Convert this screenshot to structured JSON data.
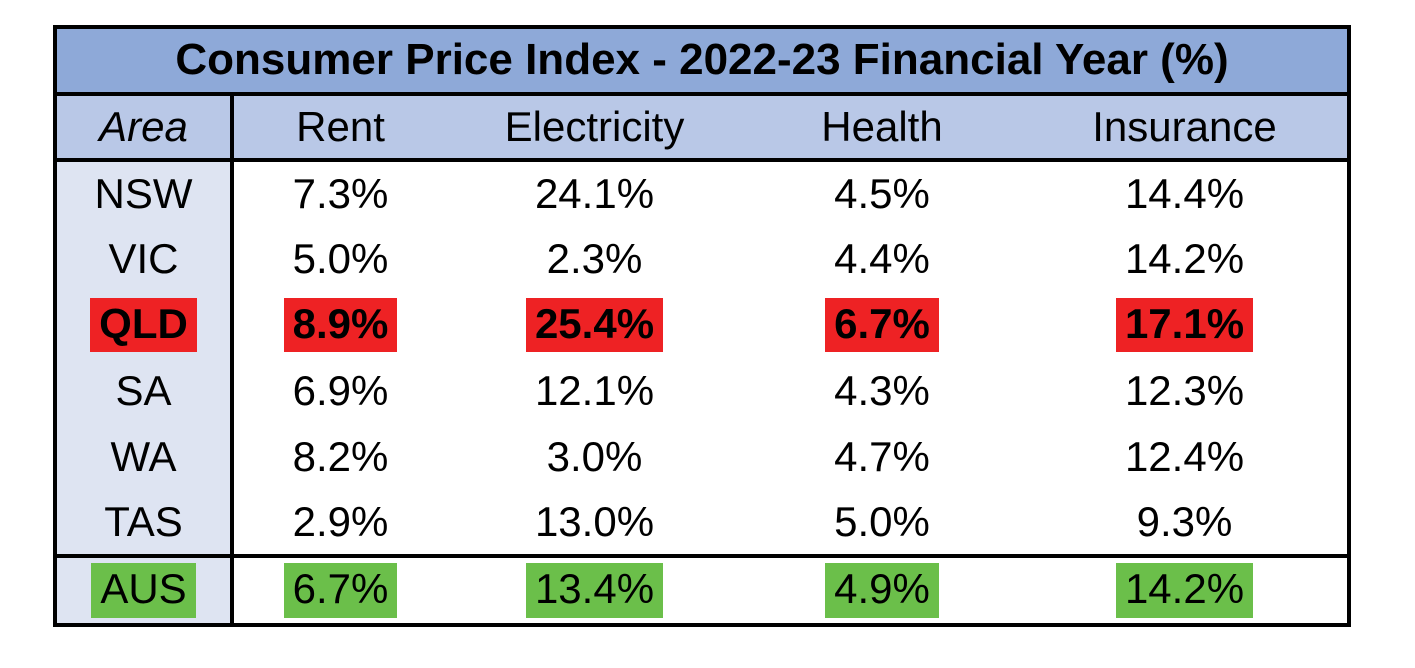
{
  "page": {
    "background": "#ffffff"
  },
  "table": {
    "title": "Consumer Price Index - 2022-23 Financial Year (%)",
    "columns": [
      {
        "label": "Area",
        "italic": true
      },
      {
        "label": "Rent",
        "italic": false
      },
      {
        "label": "Electricity",
        "italic": false
      },
      {
        "label": "Health",
        "italic": false
      },
      {
        "label": "Insurance",
        "italic": false
      }
    ],
    "rows": [
      {
        "area": "NSW",
        "values": [
          "7.3%",
          "24.1%",
          "4.5%",
          "14.4%"
        ],
        "highlight": null,
        "bold": false,
        "section": "body"
      },
      {
        "area": "VIC",
        "values": [
          "5.0%",
          "2.3%",
          "4.4%",
          "14.2%"
        ],
        "highlight": null,
        "bold": false,
        "section": "body"
      },
      {
        "area": "QLD",
        "values": [
          "8.9%",
          "25.4%",
          "6.7%",
          "17.1%"
        ],
        "highlight": "red",
        "bold": true,
        "section": "body"
      },
      {
        "area": "SA",
        "values": [
          "6.9%",
          "12.1%",
          "4.3%",
          "12.3%"
        ],
        "highlight": null,
        "bold": false,
        "section": "body"
      },
      {
        "area": "WA",
        "values": [
          "8.2%",
          "3.0%",
          "4.7%",
          "12.4%"
        ],
        "highlight": null,
        "bold": false,
        "section": "body"
      },
      {
        "area": "TAS",
        "values": [
          "2.9%",
          "13.0%",
          "5.0%",
          "9.3%"
        ],
        "highlight": null,
        "bold": false,
        "section": "body"
      },
      {
        "area": "AUS",
        "values": [
          "6.7%",
          "13.4%",
          "4.9%",
          "14.2%"
        ],
        "highlight": "green",
        "bold": false,
        "section": "summary"
      }
    ]
  },
  "colors": {
    "title_bg": "#8ea9d8",
    "header_bg": "#b9c8e7",
    "area_col_bg": "#dee4f2",
    "highlight_red": "#ee2224",
    "highlight_green": "#6bbf4a",
    "border": "#000000",
    "text": "#000000"
  },
  "chart_data": {
    "type": "table",
    "title": "Consumer Price Index - 2022-23 Financial Year (%)",
    "unit": "%",
    "categories": [
      "Rent",
      "Electricity",
      "Health",
      "Insurance"
    ],
    "series": [
      {
        "name": "NSW",
        "values": [
          7.3,
          24.1,
          4.5,
          14.4
        ]
      },
      {
        "name": "VIC",
        "values": [
          5.0,
          2.3,
          4.4,
          14.2
        ]
      },
      {
        "name": "QLD",
        "values": [
          8.9,
          25.4,
          6.7,
          17.1
        ]
      },
      {
        "name": "SA",
        "values": [
          6.9,
          12.1,
          4.3,
          12.3
        ]
      },
      {
        "name": "WA",
        "values": [
          8.2,
          3.0,
          4.7,
          12.4
        ]
      },
      {
        "name": "TAS",
        "values": [
          2.9,
          13.0,
          5.0,
          9.3
        ]
      },
      {
        "name": "AUS",
        "values": [
          6.7,
          13.4,
          4.9,
          14.2
        ]
      }
    ],
    "annotations": [
      "QLD row highlighted red and bold (highest values)",
      "AUS row highlighted green (national summary row)"
    ]
  }
}
